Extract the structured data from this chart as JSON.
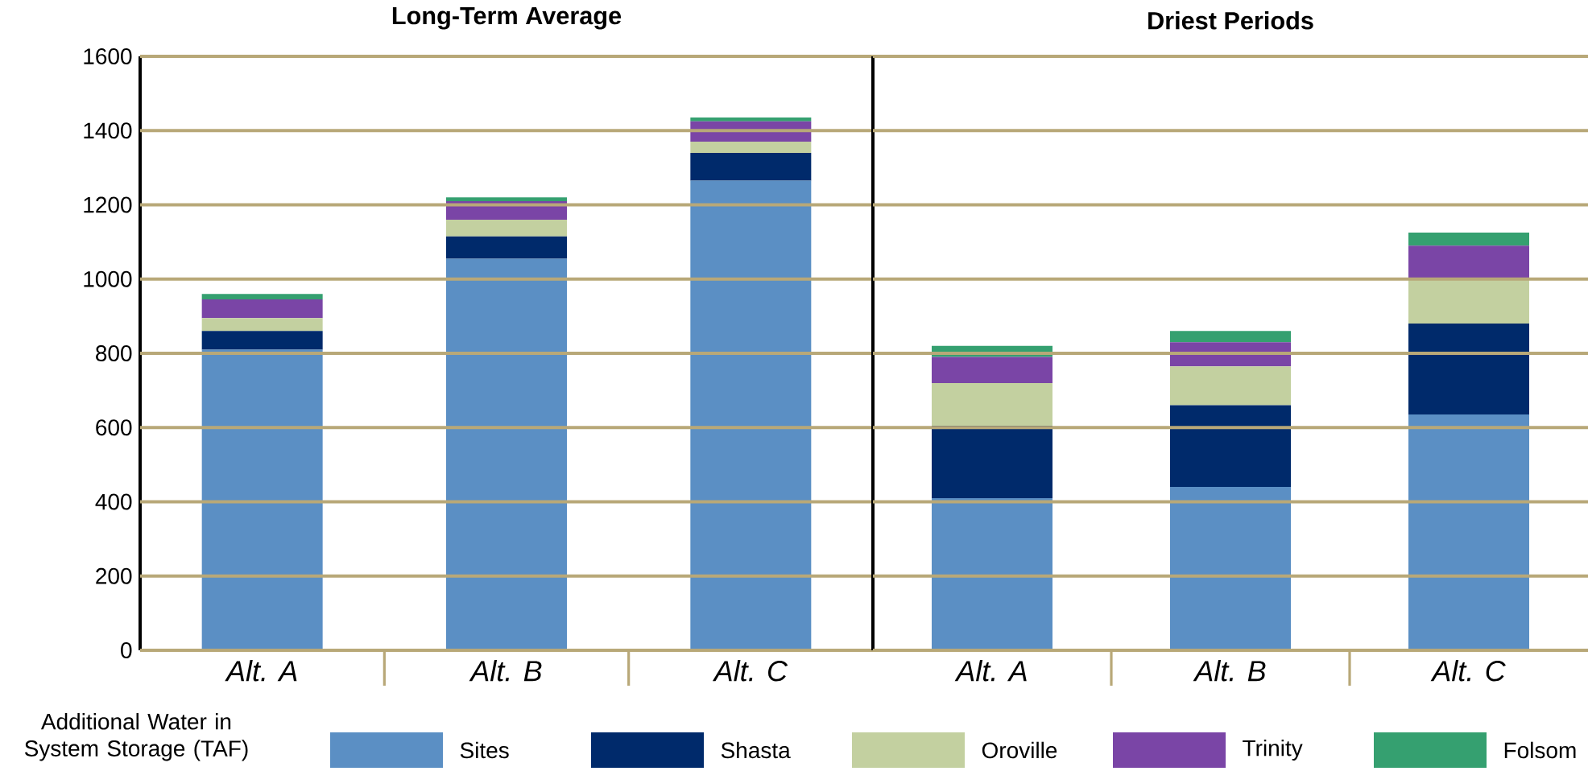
{
  "chart_data": [
    {
      "type": "bar",
      "title": "Long-Term Average",
      "stacked": true,
      "categories": [
        "Alt. A",
        "Alt. B",
        "Alt. C"
      ],
      "series": [
        {
          "name": "Sites",
          "color": "#5b8fc4",
          "values": [
            810,
            1055,
            1265
          ]
        },
        {
          "name": "Shasta",
          "color": "#002a6b",
          "values": [
            50,
            60,
            75
          ]
        },
        {
          "name": "Oroville",
          "color": "#c3d0a0",
          "values": [
            35,
            45,
            30
          ]
        },
        {
          "name": "Trinity",
          "color": "#7a45a6",
          "values": [
            50,
            50,
            55
          ]
        },
        {
          "name": "Folsom",
          "color": "#35a070",
          "values": [
            15,
            10,
            10
          ]
        }
      ],
      "ylim": [
        0,
        1600
      ],
      "yticks": [
        0,
        200,
        400,
        600,
        800,
        1000,
        1200,
        1400,
        1600
      ],
      "grid": "y",
      "legend": "bottom",
      "legend_title": "Additional Water in System Storage (TAF)"
    },
    {
      "type": "bar",
      "title": "Driest Periods",
      "stacked": true,
      "categories": [
        "Alt. A",
        "Alt. B",
        "Alt. C"
      ],
      "series": [
        {
          "color": "#5b8fc4",
          "values": [
            410,
            440,
            635
          ]
        },
        {
          "color": "#002a6b",
          "values": [
            195,
            220,
            245
          ]
        },
        {
          "color": "#c3d0a0",
          "values": [
            115,
            105,
            120
          ]
        },
        {
          "color": "#7a45a6",
          "values": [
            70,
            65,
            90
          ]
        },
        {
          "color": "#35a070",
          "values": [
            30,
            30,
            35
          ]
        }
      ],
      "ylim": [
        0,
        1600
      ],
      "yticks": [
        0,
        200,
        400,
        600,
        800,
        1000,
        1200,
        1400,
        1600
      ],
      "grid": "y",
      "tick_labels": "x"
    }
  ]
}
